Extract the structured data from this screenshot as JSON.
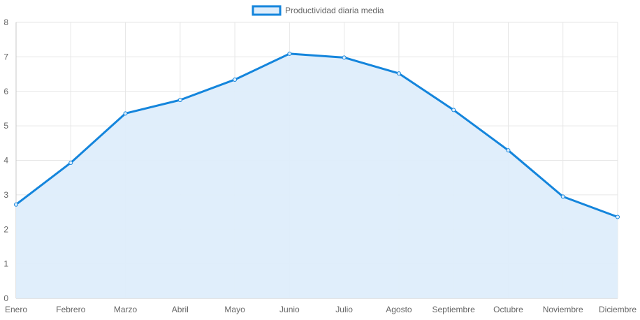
{
  "chart_data": {
    "type": "area",
    "categories": [
      "Enero",
      "Febrero",
      "Marzo",
      "Abril",
      "Mayo",
      "Junio",
      "Julio",
      "Agosto",
      "Septiembre",
      "Octubre",
      "Noviembre",
      "Diciembre"
    ],
    "series": [
      {
        "name": "Productividad diaria media",
        "values": [
          2.72,
          3.93,
          5.36,
          5.75,
          6.34,
          7.09,
          6.98,
          6.52,
          5.46,
          4.29,
          2.95,
          2.36
        ],
        "line_color": "#1485dc",
        "fill_color": "#deedfb"
      }
    ],
    "ylim": [
      0,
      8
    ],
    "yticks": [
      0,
      1,
      2,
      3,
      4,
      5,
      6,
      7,
      8
    ],
    "grid": true,
    "legend_position": "top",
    "title": "",
    "xlabel": "",
    "ylabel": ""
  }
}
